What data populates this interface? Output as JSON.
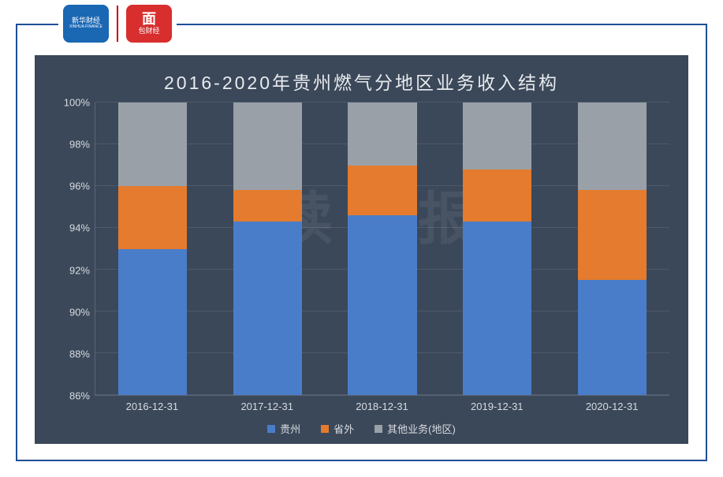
{
  "logos": {
    "left": {
      "line1": "新华财经",
      "line2": "XINHUA FINANCE"
    },
    "right": {
      "line1": "面",
      "line2": "包财经"
    }
  },
  "chart": {
    "type": "stacked-bar",
    "title": "2016-2020年贵州燃气分地区业务收入结构",
    "title_fontsize": 23,
    "title_color": "#e8ebef",
    "background_color": "#3b4859",
    "grid_color": "#4e5a6b",
    "axis_color": "#5a6677",
    "label_color": "#d7dbe1",
    "label_fontsize": 13,
    "watermark_text": "读财报",
    "watermark_color": "rgba(255,255,255,0.07)",
    "y": {
      "min": 86,
      "max": 100,
      "step": 2,
      "suffix": "%",
      "ticks": [
        86,
        88,
        90,
        92,
        94,
        96,
        98,
        100
      ]
    },
    "categories": [
      "2016-12-31",
      "2017-12-31",
      "2018-12-31",
      "2019-12-31",
      "2020-12-31"
    ],
    "series": [
      {
        "name": "贵州",
        "color": "#4a7dc9"
      },
      {
        "name": "省外",
        "color": "#e47b2e"
      },
      {
        "name": "其他业务(地区)",
        "color": "#9aa0a8"
      }
    ],
    "data": [
      {
        "guizhou": 93.0,
        "shengwai": 3.0,
        "qita": 4.0
      },
      {
        "guizhou": 94.3,
        "shengwai": 1.5,
        "qita": 4.2
      },
      {
        "guizhou": 94.6,
        "shengwai": 2.4,
        "qita": 3.0
      },
      {
        "guizhou": 94.3,
        "shengwai": 2.5,
        "qita": 3.2
      },
      {
        "guizhou": 91.5,
        "shengwai": 4.3,
        "qita": 4.2
      }
    ],
    "bar_width_pct": 60
  }
}
